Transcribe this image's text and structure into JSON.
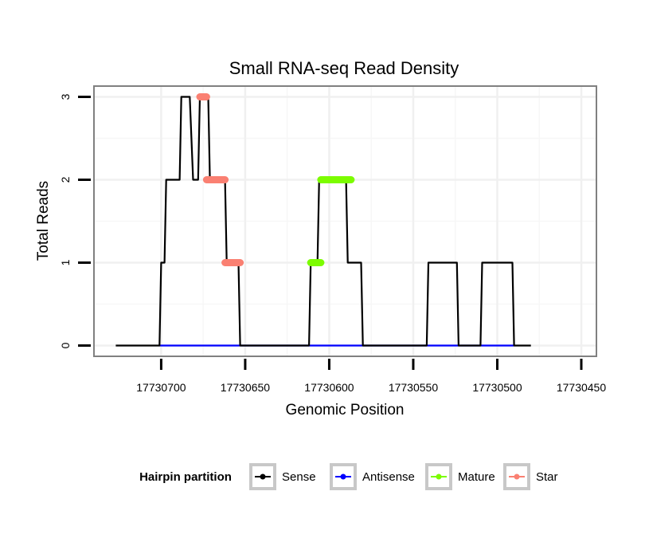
{
  "chart_data": {
    "type": "line",
    "title": "Small RNA-seq Read Density",
    "xlabel": "Genomic Position",
    "ylabel": "Total Reads",
    "x_reversed": true,
    "xlim": [
      17730740,
      17730441
    ],
    "ylim": [
      -0.13,
      3.13
    ],
    "x_ticks": [
      {
        "value": 17730700,
        "label": "17730700"
      },
      {
        "value": 17730650,
        "label": "17730650"
      },
      {
        "value": 17730600,
        "label": "17730600"
      },
      {
        "value": 17730550,
        "label": "17730550"
      },
      {
        "value": 17730500,
        "label": "17730500"
      },
      {
        "value": 17730450,
        "label": "17730450"
      }
    ],
    "y_ticks": [
      {
        "value": 0,
        "label": "0"
      },
      {
        "value": 1,
        "label": "1"
      },
      {
        "value": 2,
        "label": "2"
      },
      {
        "value": 3,
        "label": "3"
      }
    ],
    "grid": true,
    "legend": {
      "title": "Hairpin partition",
      "position": "bottom",
      "entries": [
        {
          "name": "Sense",
          "color": "#000000"
        },
        {
          "name": "Antisense",
          "color": "#0000ff"
        },
        {
          "name": "Mature",
          "color": "#7cfc00"
        },
        {
          "name": "Star",
          "color": "#fa8072"
        }
      ]
    },
    "series": [
      {
        "name": "Sense",
        "color": "#000000",
        "style": "line",
        "points": [
          [
            17730727,
            0
          ],
          [
            17730701,
            0
          ],
          [
            17730700,
            1
          ],
          [
            17730698,
            1
          ],
          [
            17730697,
            2
          ],
          [
            17730689,
            2
          ],
          [
            17730688,
            3
          ],
          [
            17730683,
            3
          ],
          [
            17730681,
            2
          ],
          [
            17730678,
            2
          ],
          [
            17730677,
            3
          ],
          [
            17730672,
            3
          ],
          [
            17730671,
            2
          ],
          [
            17730662,
            2
          ],
          [
            17730661,
            1
          ],
          [
            17730654,
            1
          ],
          [
            17730653,
            0
          ],
          [
            17730612,
            0
          ],
          [
            17730611,
            1
          ],
          [
            17730607,
            1
          ],
          [
            17730606,
            2
          ],
          [
            17730590,
            2
          ],
          [
            17730589,
            1
          ],
          [
            17730581,
            1
          ],
          [
            17730580,
            0
          ],
          [
            17730542,
            0
          ],
          [
            17730541,
            1
          ],
          [
            17730524,
            1
          ],
          [
            17730523,
            0
          ],
          [
            17730510,
            0
          ],
          [
            17730509,
            1
          ],
          [
            17730491,
            1
          ],
          [
            17730490,
            0
          ],
          [
            17730480,
            0
          ]
        ]
      },
      {
        "name": "Antisense",
        "color": "#0000ff",
        "style": "line",
        "points": [
          [
            17730701,
            0
          ],
          [
            17730490,
            0
          ]
        ]
      },
      {
        "name": "Mature",
        "color": "#7cfc00",
        "style": "points",
        "segments": [
          {
            "x_from": 17730611,
            "x_to": 17730605,
            "y": 1
          },
          {
            "x_from": 17730605,
            "x_to": 17730587,
            "y": 2
          }
        ]
      },
      {
        "name": "Star",
        "color": "#fa8072",
        "style": "points",
        "segments": [
          {
            "x_from": 17730677,
            "x_to": 17730673,
            "y": 3
          },
          {
            "x_from": 17730673,
            "x_to": 17730662,
            "y": 2
          },
          {
            "x_from": 17730662,
            "x_to": 17730653,
            "y": 1
          }
        ]
      }
    ]
  }
}
